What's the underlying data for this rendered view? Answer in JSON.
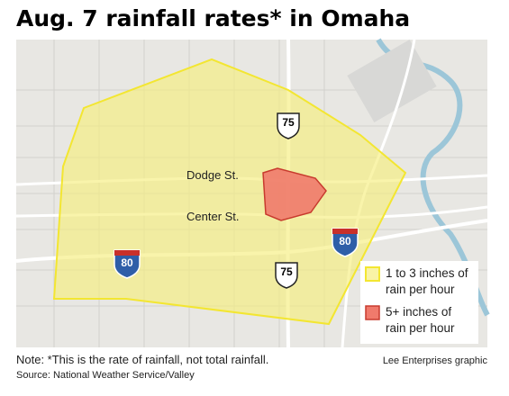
{
  "header": {
    "title": "Aug. 7 rainfall rates* in Omaha"
  },
  "map": {
    "street_labels": [
      "Dodge St.",
      "Center St."
    ],
    "highway_shields": [
      {
        "kind": "US",
        "label": "75"
      },
      {
        "kind": "US",
        "label": "75"
      },
      {
        "kind": "Interstate",
        "label": "80"
      },
      {
        "kind": "Interstate",
        "label": "80"
      }
    ]
  },
  "legend": {
    "items": [
      {
        "lines": [
          "1 to 3 inches of",
          "rain per hour"
        ]
      },
      {
        "lines": [
          "5+ inches of",
          "rain per hour"
        ]
      }
    ]
  },
  "footer": {
    "note": "Note: *This is the rate of rainfall, not total rainfall.",
    "source": "Source: National Weather Service/Valley",
    "credit": "Lee Enterprises graphic"
  }
}
